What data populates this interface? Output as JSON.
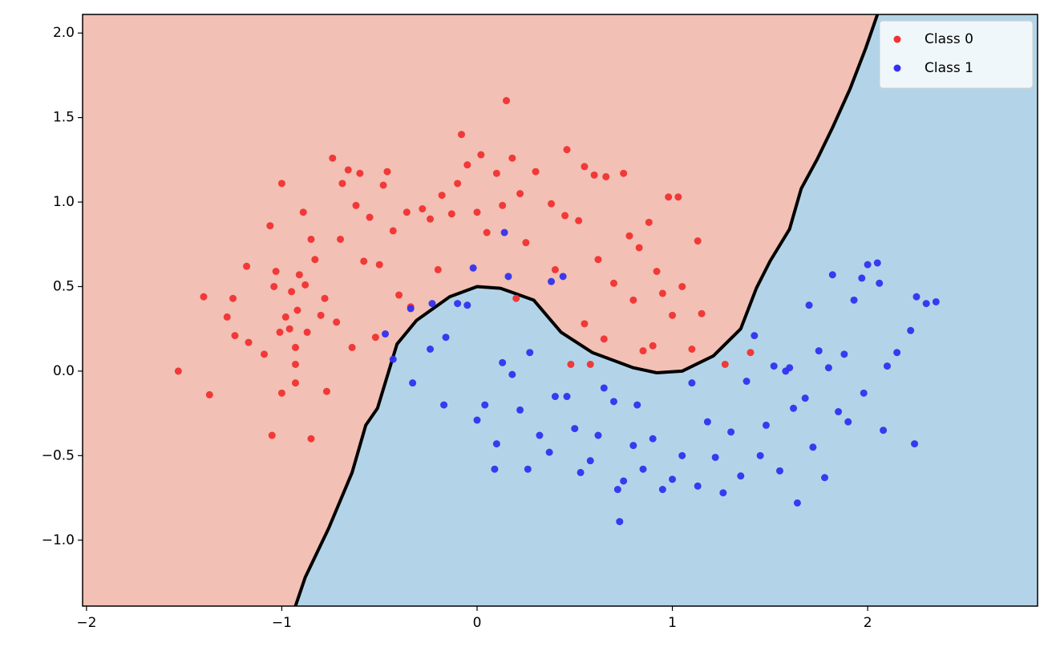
{
  "chart_data": {
    "type": "scatter",
    "xlim": [
      -2.02,
      2.87
    ],
    "ylim": [
      -1.39,
      2.11
    ],
    "xticks": [
      {
        "value": -2,
        "label": "−2"
      },
      {
        "value": -1,
        "label": "−1"
      },
      0,
      1,
      2
    ],
    "yticks": [
      {
        "value": -1.0,
        "label": "−1.0"
      },
      {
        "value": -0.5,
        "label": "−0.5"
      },
      {
        "value": 0.0,
        "label": "0.0"
      },
      0.5,
      {
        "value": 1.0,
        "label": "1.0"
      },
      1.5,
      {
        "value": 2.0,
        "label": "2.0"
      }
    ],
    "legend": "upper right",
    "decision_boundary": {
      "color": "#000000",
      "x": [
        -0.93,
        -0.88,
        -0.76,
        -0.64,
        -0.57,
        -0.51,
        -0.41,
        -0.31,
        -0.14,
        0.0,
        0.12,
        0.29,
        0.43,
        0.59,
        0.8,
        0.92,
        1.05,
        1.21,
        1.35,
        1.43,
        1.5,
        1.6,
        1.66,
        1.74,
        1.82,
        1.91,
        1.99,
        2.05
      ],
      "y": [
        -1.39,
        -1.22,
        -0.93,
        -0.6,
        -0.32,
        -0.22,
        0.16,
        0.3,
        0.44,
        0.5,
        0.49,
        0.42,
        0.23,
        0.11,
        0.02,
        -0.01,
        0.0,
        0.09,
        0.25,
        0.49,
        0.65,
        0.84,
        1.08,
        1.25,
        1.44,
        1.67,
        1.91,
        2.11
      ]
    },
    "series": [
      {
        "name": "Class 0",
        "color": "#f03232",
        "region_color": "#f2c0b4",
        "x": [
          -1.53,
          -1.4,
          -1.37,
          -1.28,
          -1.25,
          -1.24,
          -1.18,
          -1.17,
          -1.09,
          -1.06,
          -1.04,
          -1.03,
          -1.0,
          -1.01,
          -1.0,
          -0.98,
          -0.96,
          -0.95,
          -0.93,
          -0.93,
          -0.93,
          -0.92,
          -0.91,
          -0.89,
          -0.88,
          -0.87,
          -0.85,
          -0.83,
          -0.8,
          -0.78,
          -0.77,
          -0.74,
          -0.72,
          -0.7,
          -0.69,
          -0.66,
          -0.64,
          -0.62,
          -0.6,
          -0.58,
          -0.55,
          -0.52,
          -0.5,
          -0.48,
          -0.46,
          -0.43,
          -0.4,
          -0.36,
          -0.34,
          -0.28,
          -0.24,
          -0.2,
          -0.18,
          -0.13,
          -0.1,
          -0.05,
          0.0,
          0.02,
          0.05,
          0.1,
          0.15,
          0.13,
          -0.08,
          0.18,
          0.22,
          0.25,
          0.3,
          0.38,
          0.4,
          0.46,
          0.45,
          0.52,
          0.55,
          0.6,
          0.62,
          0.66,
          0.7,
          0.75,
          0.78,
          0.83,
          0.88,
          0.92,
          0.95,
          0.98,
          1.03,
          1.0,
          1.05,
          1.1,
          1.13,
          1.15,
          0.85,
          0.8,
          0.58,
          0.48,
          1.27,
          1.4,
          -1.05,
          -0.85,
          0.65,
          0.9,
          0.2,
          0.55
        ],
        "y": [
          0.0,
          0.44,
          -0.14,
          0.32,
          0.43,
          0.21,
          0.62,
          0.17,
          0.1,
          0.86,
          0.5,
          0.59,
          1.11,
          0.23,
          -0.13,
          0.32,
          0.25,
          0.47,
          0.14,
          0.04,
          -0.07,
          0.36,
          0.57,
          0.94,
          0.51,
          0.23,
          0.78,
          0.66,
          0.33,
          0.43,
          -0.12,
          1.26,
          0.29,
          0.78,
          1.11,
          1.19,
          0.14,
          0.98,
          1.17,
          0.65,
          0.91,
          0.2,
          0.63,
          1.1,
          1.18,
          0.83,
          0.45,
          0.94,
          0.38,
          0.96,
          0.9,
          0.6,
          1.04,
          0.93,
          1.11,
          1.22,
          0.94,
          1.28,
          0.82,
          1.17,
          1.6,
          0.98,
          1.4,
          1.26,
          1.05,
          0.76,
          1.18,
          0.99,
          0.6,
          1.31,
          0.92,
          0.89,
          1.21,
          1.16,
          0.66,
          1.15,
          0.52,
          1.17,
          0.8,
          0.73,
          0.88,
          0.59,
          0.46,
          1.03,
          1.03,
          0.33,
          0.5,
          0.13,
          0.77,
          0.34,
          0.12,
          0.42,
          0.04,
          0.04,
          0.04,
          0.11,
          -0.38,
          -0.4,
          0.19,
          0.15,
          0.43,
          0.28
        ]
      },
      {
        "name": "Class 1",
        "color": "#3232f0",
        "region_color": "#b3d4e8",
        "x": [
          -0.47,
          -0.43,
          -0.34,
          -0.33,
          -0.24,
          -0.23,
          -0.17,
          -0.16,
          -0.1,
          -0.05,
          -0.02,
          0.0,
          0.04,
          0.09,
          0.1,
          0.13,
          0.14,
          0.16,
          0.18,
          0.22,
          0.26,
          0.27,
          0.32,
          0.38,
          0.37,
          0.4,
          0.44,
          0.46,
          0.5,
          0.53,
          0.58,
          0.62,
          0.65,
          0.7,
          0.72,
          0.73,
          0.75,
          0.8,
          0.82,
          0.85,
          0.9,
          0.95,
          1.0,
          1.05,
          1.1,
          1.13,
          1.18,
          1.22,
          1.26,
          1.3,
          1.35,
          1.38,
          1.42,
          1.45,
          1.48,
          1.52,
          1.55,
          1.58,
          1.62,
          1.64,
          1.68,
          1.7,
          1.72,
          1.75,
          1.78,
          1.8,
          1.82,
          1.85,
          1.88,
          1.9,
          1.93,
          1.97,
          2.0,
          2.05,
          2.06,
          2.08,
          2.1,
          2.15,
          2.22,
          2.25,
          2.24,
          2.3,
          2.35,
          1.98,
          1.6
        ],
        "y": [
          0.22,
          0.07,
          0.37,
          -0.07,
          0.13,
          0.4,
          -0.2,
          0.2,
          0.4,
          0.39,
          0.61,
          -0.29,
          -0.2,
          -0.58,
          -0.43,
          0.05,
          0.82,
          0.56,
          -0.02,
          -0.23,
          -0.58,
          0.11,
          -0.38,
          0.53,
          -0.48,
          -0.15,
          0.56,
          -0.15,
          -0.34,
          -0.6,
          -0.53,
          -0.38,
          -0.1,
          -0.18,
          -0.7,
          -0.89,
          -0.65,
          -0.44,
          -0.2,
          -0.58,
          -0.4,
          -0.7,
          -0.64,
          -0.5,
          -0.07,
          -0.68,
          -0.3,
          -0.51,
          -0.72,
          -0.36,
          -0.62,
          -0.06,
          0.21,
          -0.5,
          -0.32,
          0.03,
          -0.59,
          0.0,
          -0.22,
          -0.78,
          -0.16,
          0.39,
          -0.45,
          0.12,
          -0.63,
          0.02,
          0.57,
          -0.24,
          0.1,
          -0.3,
          0.42,
          0.55,
          0.63,
          0.64,
          0.52,
          -0.35,
          0.03,
          0.11,
          0.24,
          0.44,
          -0.43,
          0.4,
          0.41,
          -0.13,
          0.02
        ]
      }
    ]
  }
}
